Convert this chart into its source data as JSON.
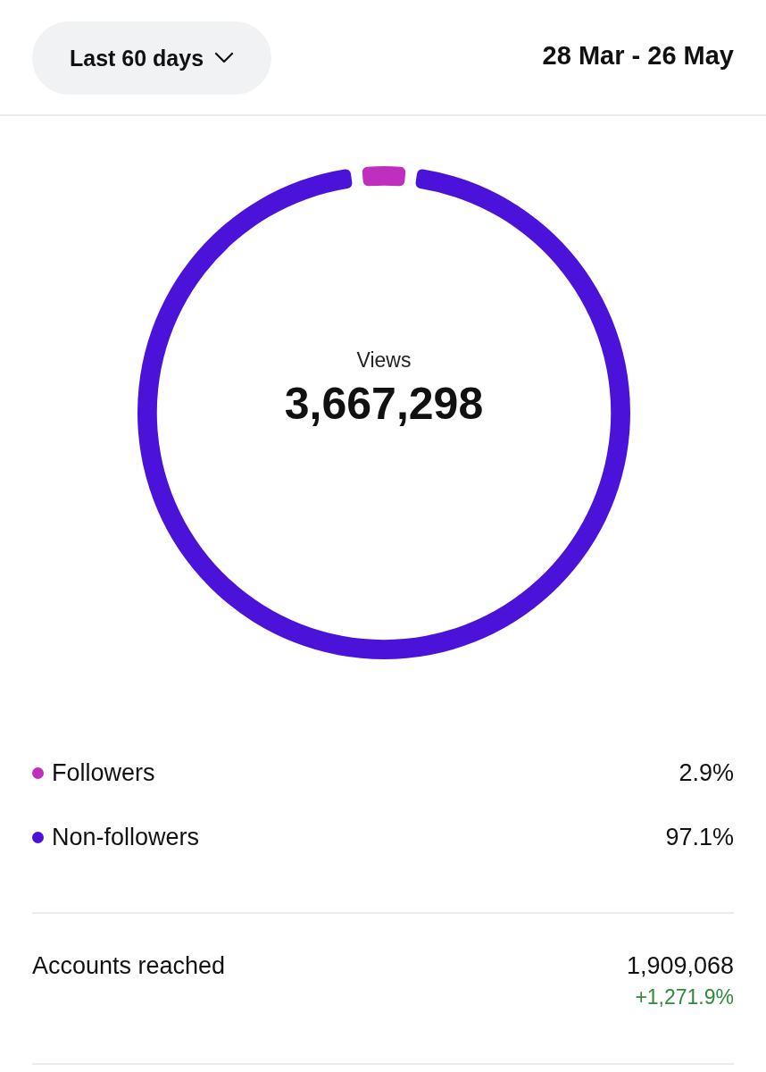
{
  "chart_data": {
    "type": "donut",
    "title": "Views",
    "subtitle": "3,667,298",
    "categories": [
      "Followers",
      "Non-followers"
    ],
    "values": [
      2.9,
      97.1
    ],
    "colors": [
      "#c02ec0",
      "#4b12d9"
    ],
    "value_labels": [
      "2.9%",
      "97.1%"
    ],
    "legend": "bottom",
    "annotations": [
      "Last 60 days",
      "28 Mar - 26 May",
      "Accounts reached",
      "1,909,068",
      "+1,271.9%"
    ]
  }
}
